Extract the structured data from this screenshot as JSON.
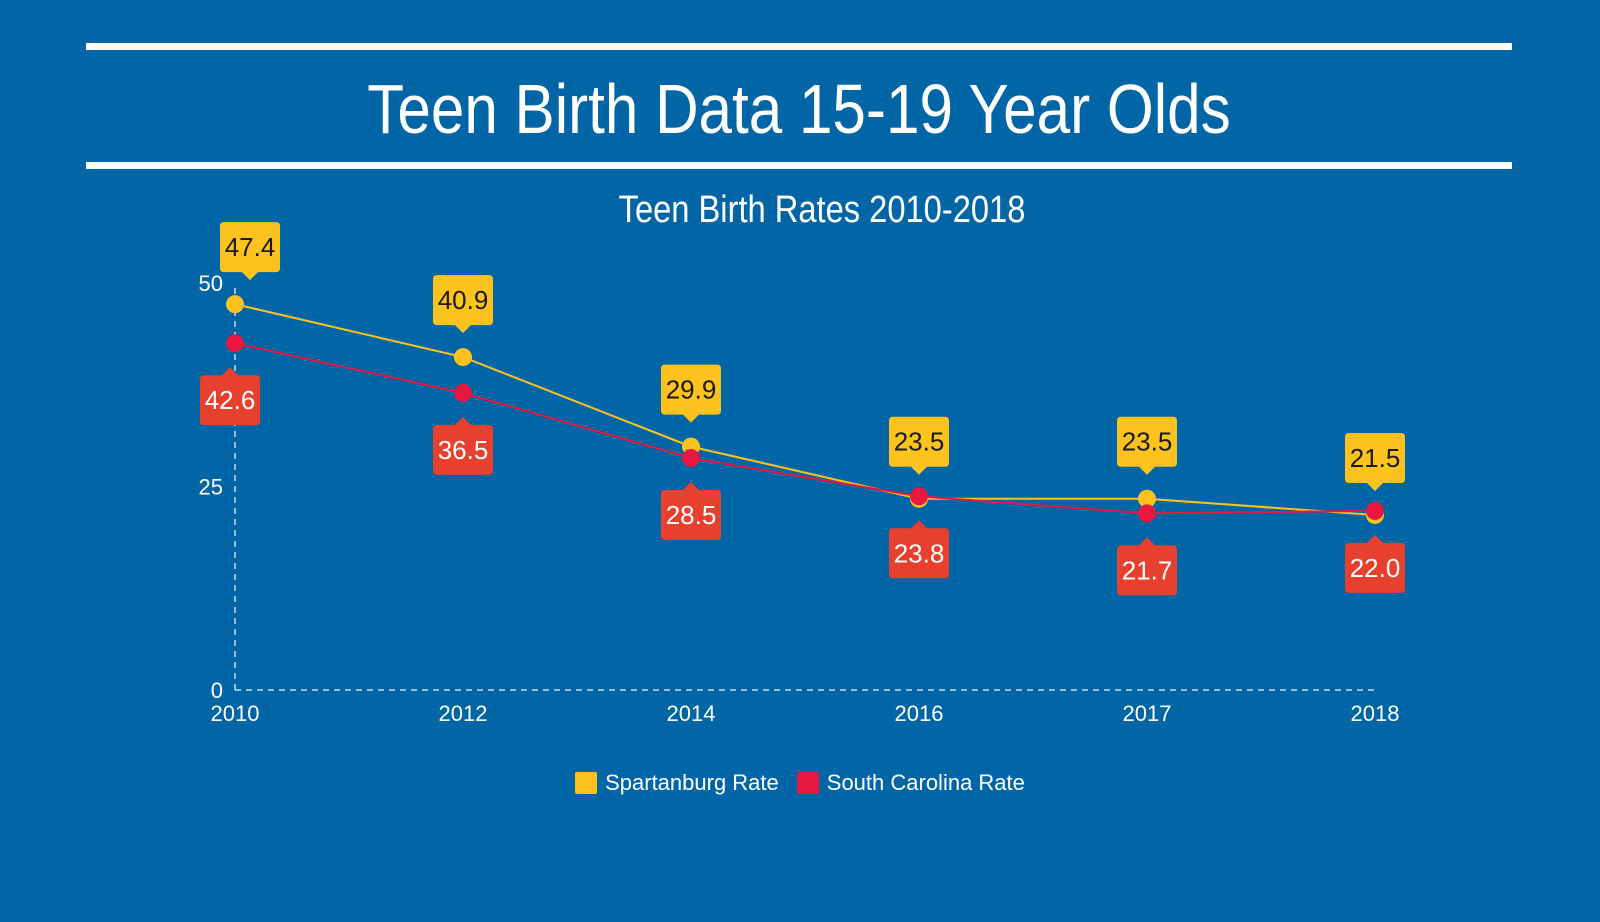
{
  "header": {
    "title": "Teen Birth Data 15-19 Year Olds"
  },
  "chart_data": {
    "type": "line",
    "title": "Teen Birth Rates 2010-2018",
    "xlabel": "",
    "ylabel": "",
    "categories": [
      "2010",
      "2012",
      "2014",
      "2016",
      "2017",
      "2018"
    ],
    "ylim": [
      0,
      50
    ],
    "yticks": [
      0,
      25,
      50
    ],
    "grid": false,
    "legend_position": "bottom-center",
    "series": [
      {
        "name": "Spartanburg Rate",
        "color": "#fcc31e",
        "label_text_color": "#1a1a1a",
        "values": [
          47.4,
          40.9,
          29.9,
          23.5,
          23.5,
          21.5
        ],
        "labels": [
          "47.4",
          "40.9",
          "29.9",
          "23.5",
          "23.5",
          "21.5"
        ],
        "label_placement": "above"
      },
      {
        "name": "South Carolina Rate",
        "color": "#e8173f",
        "label_fill": "#e8402f",
        "label_text_color": "#ffffff",
        "values": [
          42.6,
          36.5,
          28.5,
          23.8,
          21.7,
          22.0
        ],
        "labels": [
          "42.6",
          "36.5",
          "28.5",
          "23.8",
          "21.7",
          "22.0"
        ],
        "label_placement": "below"
      }
    ]
  },
  "colors": {
    "background": "#0266a6",
    "text": "#ffffff",
    "axis": "#c8dced"
  }
}
